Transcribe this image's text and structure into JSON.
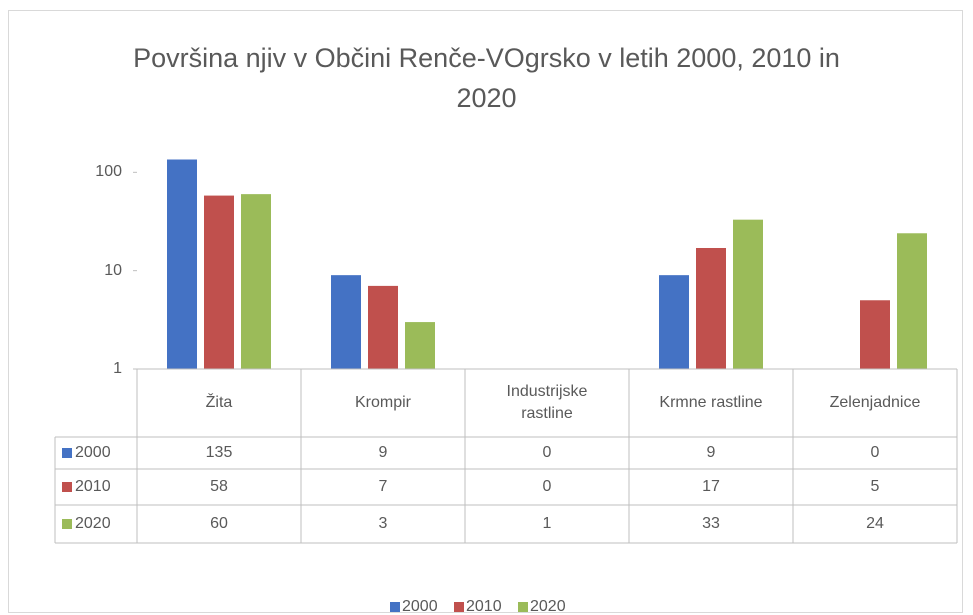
{
  "chart_data": {
    "type": "bar",
    "title": "Površina njiv v Občini Renče-VOgrsko v letih 2000, 2010 in 2020",
    "categories": [
      "Žita",
      "Krompir",
      "Industrijske rastline",
      "Krmne rastline",
      "Zelenjadnice"
    ],
    "series": [
      {
        "name": "2000",
        "color": "#4472c4",
        "values": [
          135,
          9,
          0,
          9,
          0
        ]
      },
      {
        "name": "2010",
        "color": "#c0504d",
        "values": [
          58,
          7,
          0,
          17,
          5
        ]
      },
      {
        "name": "2020",
        "color": "#9bbb59",
        "values": [
          60,
          3,
          1,
          33,
          24
        ]
      }
    ],
    "log_scale": true,
    "ylim": [
      1,
      150
    ],
    "yticks": [
      1,
      10,
      100
    ],
    "grid": false,
    "legend": "bottom",
    "data_table": true
  }
}
